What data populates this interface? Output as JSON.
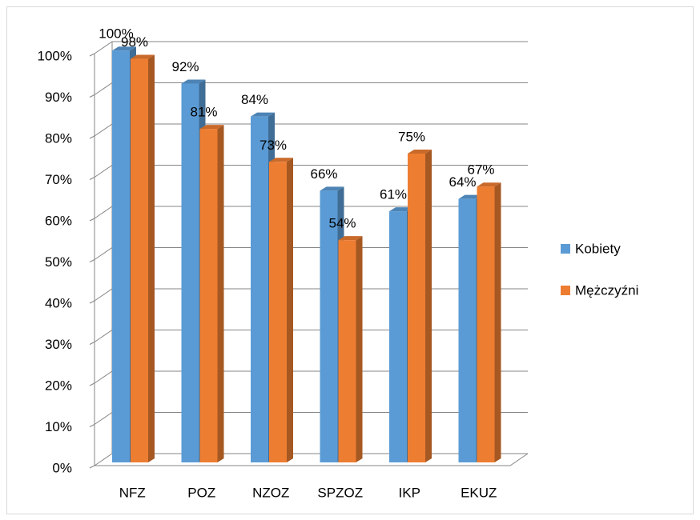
{
  "chart_data": {
    "type": "bar3d",
    "categories": [
      "NFZ",
      "POZ",
      "NZOZ",
      "SPZOZ",
      "IKP",
      "EKUZ"
    ],
    "series": [
      {
        "name": "Kobiety",
        "color": "#5b9bd5",
        "values": [
          100,
          92,
          84,
          66,
          61,
          64
        ],
        "value_labels": [
          "100%",
          "92%",
          "84%",
          "66%",
          "61%",
          "64%"
        ]
      },
      {
        "name": "Mężczyźni",
        "color": "#ed7d31",
        "values": [
          98,
          81,
          73,
          54,
          75,
          67
        ],
        "value_labels": [
          "98%",
          "81%",
          "73%",
          "54%",
          "75%",
          "67%"
        ]
      }
    ],
    "ylim": [
      0,
      100
    ],
    "yticks": [
      {
        "value": 0,
        "label": "0%"
      },
      {
        "value": 10,
        "label": "10%"
      },
      {
        "value": 20,
        "label": "20%"
      },
      {
        "value": 30,
        "label": "30%"
      },
      {
        "value": 40,
        "label": "40%"
      },
      {
        "value": 50,
        "label": "50%"
      },
      {
        "value": 60,
        "label": "60%"
      },
      {
        "value": 70,
        "label": "70%"
      },
      {
        "value": 80,
        "label": "80%"
      },
      {
        "value": 90,
        "label": "90%"
      },
      {
        "value": 100,
        "label": "100%"
      }
    ],
    "grid": true,
    "legend": "right"
  }
}
